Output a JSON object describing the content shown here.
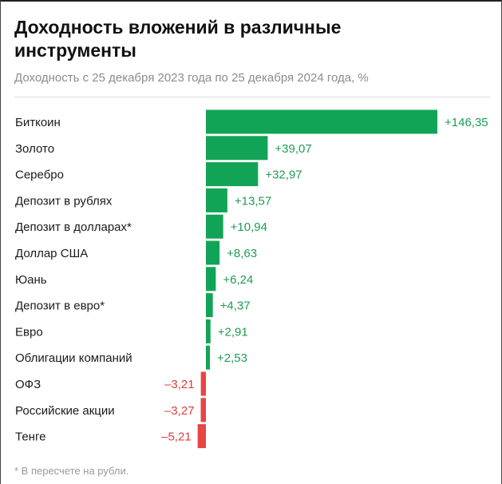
{
  "header": {
    "title": "Доходность вложений в различные инструменты",
    "subtitle": "Доходность с 25 декабря 2023 года по 25 декабря 2024 года, %"
  },
  "footnote": "* В пересчете на рубли.",
  "colors": {
    "positive": "#12a456",
    "negative": "#e84545",
    "positive_label": "#1e9c55",
    "negative_label": "#d94040"
  },
  "chart_data": {
    "type": "bar",
    "orientation": "horizontal",
    "title": "Доходность вложений в различные инструменты",
    "subtitle": "Доходность с 25 декабря 2023 года по 25 декабря 2024 года, %",
    "categories": [
      "Биткоин",
      "Золото",
      "Серебро",
      "Депозит в рублях",
      "Депозит в долларах*",
      "Доллар США",
      "Юань",
      "Депозит в евро*",
      "Евро",
      "Облигации компаний",
      "ОФЗ",
      "Российские акции",
      "Тенге"
    ],
    "values": [
      146.35,
      39.07,
      32.97,
      13.57,
      10.94,
      8.63,
      6.24,
      4.37,
      2.91,
      2.53,
      -3.21,
      -3.27,
      -5.21
    ],
    "value_labels": [
      "+146,35",
      "+39,07",
      "+32,97",
      "+13,57",
      "+10,94",
      "+8,63",
      "+6,24",
      "+4,37",
      "+2,91",
      "+2,53",
      "–3,21",
      "–3,27",
      "–5,21"
    ],
    "xlabel": "",
    "ylabel": "",
    "grid": false,
    "legend": "none"
  }
}
